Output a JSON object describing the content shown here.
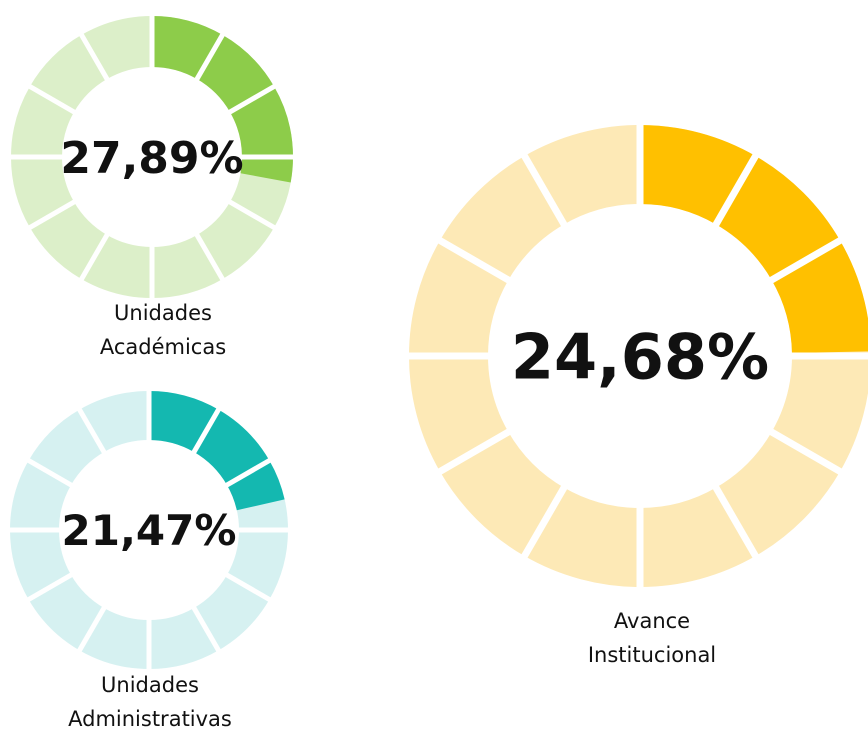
{
  "chart_data": [
    {
      "type": "donut",
      "label": "Unidades Académicas",
      "value": 27.89,
      "value_label": "27,89%",
      "color": "#8dcc4a",
      "empty_color": "#dcefc9",
      "segments": 12
    },
    {
      "type": "donut",
      "label": "Unidades Administrativas",
      "value": 21.47,
      "value_label": "21,47%",
      "color": "#14b8b0",
      "empty_color": "#d6f1f1",
      "segments": 12
    },
    {
      "type": "donut",
      "label": "Avance Institucional",
      "value": 24.68,
      "value_label": "24,68%",
      "color": "#ffc000",
      "empty_color": "#fde9b6",
      "segments": 12
    }
  ]
}
